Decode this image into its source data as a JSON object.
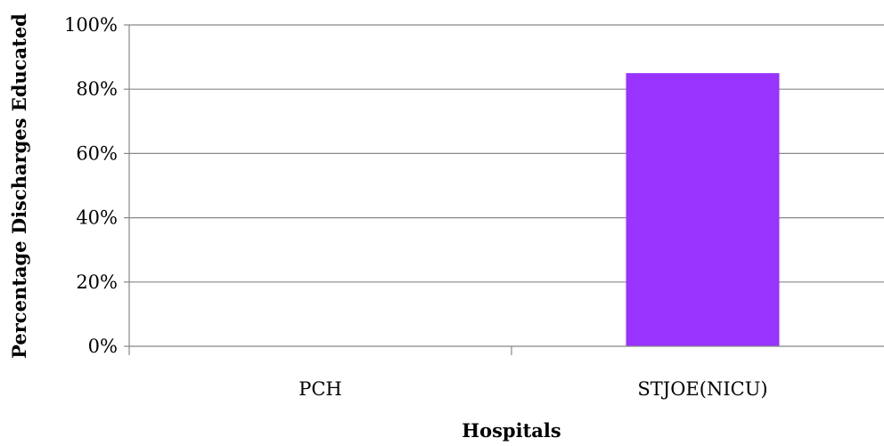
{
  "chart_data": {
    "type": "bar",
    "categories": [
      "PCH",
      "STJOE(NICU)"
    ],
    "values": [
      0,
      85
    ],
    "ylim": [
      0,
      100
    ],
    "yticks": [
      0,
      20,
      40,
      60,
      80,
      100
    ],
    "ytick_format": "{v}%",
    "xlabel": "Hospitals",
    "ylabel": "Percentage Discharges Educated",
    "grid": true,
    "legend": "none",
    "bar_color": "#9933FF",
    "gridline_color": "#888888",
    "axis_color": "#888888"
  }
}
